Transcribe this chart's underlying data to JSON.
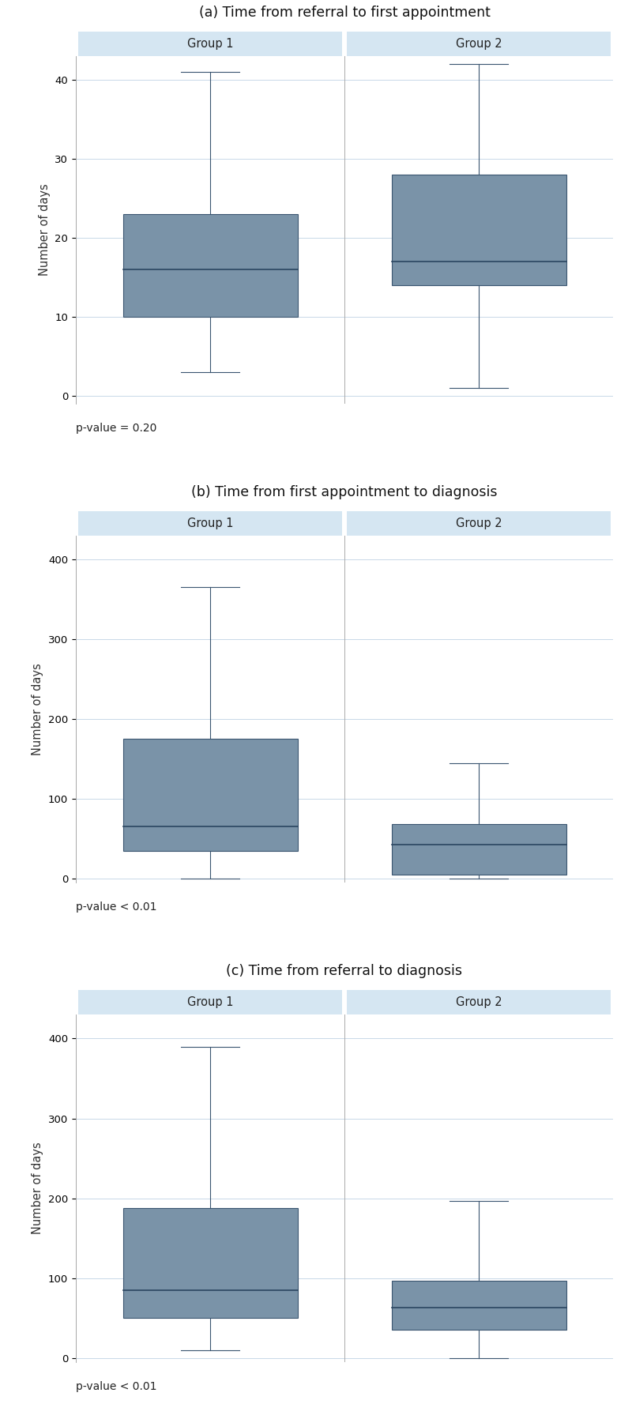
{
  "plots": [
    {
      "title": "(a) Time from referral to first appointment",
      "pvalue": "p-value = 0.20",
      "ylabel": "Number of days",
      "ylim": [
        -1,
        43
      ],
      "yticks": [
        0,
        10,
        20,
        30,
        40
      ],
      "groups": [
        "Group 1",
        "Group 2"
      ],
      "group1": {
        "whisker_low": 3,
        "q1": 10,
        "median": 16,
        "q3": 23,
        "whisker_high": 41
      },
      "group2": {
        "whisker_low": 1,
        "q1": 14,
        "median": 17,
        "q3": 28,
        "whisker_high": 42
      }
    },
    {
      "title": "(b) Time from first appointment to diagnosis",
      "pvalue": "p-value < 0.01",
      "ylabel": "Number of days",
      "ylim": [
        -5,
        430
      ],
      "yticks": [
        0,
        100,
        200,
        300,
        400
      ],
      "groups": [
        "Group 1",
        "Group 2"
      ],
      "group1": {
        "whisker_low": 0,
        "q1": 35,
        "median": 65,
        "q3": 175,
        "whisker_high": 365
      },
      "group2": {
        "whisker_low": 0,
        "q1": 5,
        "median": 43,
        "q3": 68,
        "whisker_high": 145
      }
    },
    {
      "title": "(c) Time from referral to diagnosis",
      "pvalue": "p-value < 0.01",
      "ylabel": "Number of days",
      "ylim": [
        -5,
        430
      ],
      "yticks": [
        0,
        100,
        200,
        300,
        400
      ],
      "groups": [
        "Group 1",
        "Group 2"
      ],
      "group1": {
        "whisker_low": 10,
        "q1": 50,
        "median": 85,
        "q3": 188,
        "whisker_high": 390
      },
      "group2": {
        "whisker_low": 0,
        "q1": 35,
        "median": 63,
        "q3": 97,
        "whisker_high": 197
      }
    }
  ],
  "box_color": "#7a93a8",
  "box_edge_color": "#3a5570",
  "whisker_color": "#3a5570",
  "median_color": "#2a4560",
  "header_bg": "#d5e6f2",
  "header_text_color": "#222222",
  "bg_color": "#ffffff",
  "plot_bg": "#ffffff",
  "grid_color": "#c8d8e8",
  "title_fontsize": 12.5,
  "label_fontsize": 10.5,
  "tick_fontsize": 9.5,
  "pvalue_fontsize": 10,
  "header_fontsize": 10.5
}
